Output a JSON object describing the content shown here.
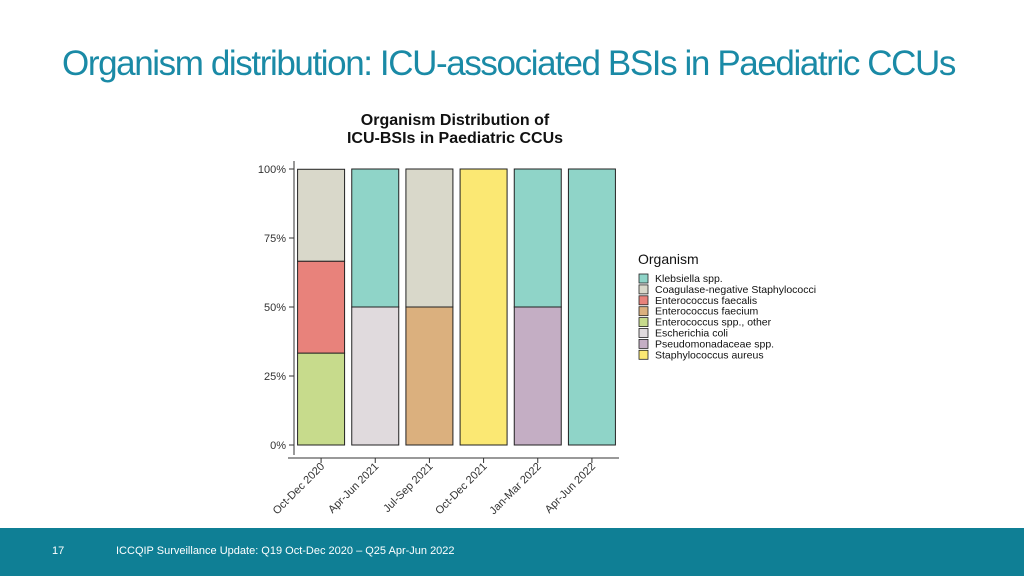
{
  "slide": {
    "title": "Organism distribution: ICU-associated BSIs in Paediatric CCUs"
  },
  "chart_data": {
    "type": "bar",
    "stacked": true,
    "title_line1": "Organism Distribution of",
    "title_line2": "ICU-BSIs in Paediatric CCUs",
    "categories": [
      "Oct-Dec 2020",
      "Apr-Jun 2021",
      "Jul-Sep 2021",
      "Oct-Dec 2021",
      "Jan-Mar 2022",
      "Apr-Jun 2022"
    ],
    "ylim": [
      0,
      100
    ],
    "yticks": [
      0,
      25,
      50,
      75,
      100
    ],
    "ytick_labels": [
      "0%",
      "25%",
      "50%",
      "75%",
      "100%"
    ],
    "legend_title": "Organism",
    "legend_position": "right",
    "grid": false,
    "series": [
      {
        "name": "Klebsiella spp.",
        "color": "#8fd4c8",
        "values": [
          0,
          50,
          0,
          0,
          50,
          100
        ]
      },
      {
        "name": "Coagulase-negative Staphylococci",
        "color": "#d9d8ca",
        "values": [
          33.3,
          0,
          50,
          0,
          0,
          0
        ]
      },
      {
        "name": "Enterococcus faecalis",
        "color": "#e8827b",
        "values": [
          33.3,
          0,
          0,
          0,
          0,
          0
        ]
      },
      {
        "name": "Enterococcus faecium",
        "color": "#dbb07e",
        "values": [
          0,
          0,
          50,
          0,
          0,
          0
        ]
      },
      {
        "name": "Enterococcus spp., other",
        "color": "#c7db8c",
        "values": [
          33.3,
          0,
          0,
          0,
          0,
          0
        ]
      },
      {
        "name": "Escherichia coli",
        "color": "#e0dadd",
        "values": [
          0,
          50,
          0,
          0,
          0,
          0
        ]
      },
      {
        "name": "Pseudomonadaceae spp.",
        "color": "#c4aec4",
        "values": [
          0,
          0,
          0,
          0,
          50,
          0
        ]
      },
      {
        "name": "Staphylococcus aureus",
        "color": "#fbe873",
        "values": [
          0,
          0,
          0,
          100,
          0,
          0
        ]
      }
    ],
    "stack_order_bottom_to_top": [
      4,
      5,
      3,
      6,
      2,
      0,
      1,
      7
    ]
  },
  "footer": {
    "page_number": "17",
    "text": "ICCQIP Surveillance Update: Q19 Oct-Dec 2020 – Q25 Apr-Jun 2022"
  }
}
